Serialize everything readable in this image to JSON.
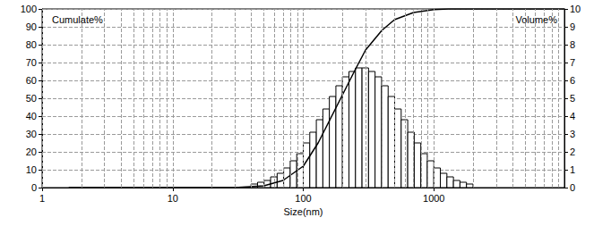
{
  "chart_data": {
    "type": "histogram",
    "xlabel": "Size(nm)",
    "ylabel": "Cumulate%",
    "y2label": "Volume%",
    "log": "x",
    "grid": true,
    "xlim": [
      1,
      10000
    ],
    "xticks": [
      1,
      10,
      100,
      1000
    ],
    "ylim": [
      0,
      100
    ],
    "yticks": [
      0,
      10,
      20,
      30,
      40,
      50,
      60,
      70,
      80,
      90,
      100
    ],
    "y2lim": [
      0,
      10
    ],
    "y2ticks": [
      0,
      1,
      2,
      3,
      4,
      5,
      6,
      7,
      8,
      9,
      10
    ],
    "series": [
      {
        "type": "bar",
        "axis": "y2",
        "color": "#000000",
        "bins": [
          39.81,
          44.67,
          50.12,
          56.23,
          63.1,
          70.79,
          79.43,
          89.13,
          100,
          112.2,
          125.9,
          141.3,
          158.5,
          177.8,
          199.5,
          223.9,
          251.2,
          281.8,
          316.2,
          354.8,
          398.1,
          446.7,
          501.2,
          562.3,
          631.0,
          707.9,
          794.3,
          891.3,
          1000,
          1122,
          1259,
          1413,
          1585,
          1778,
          1995
        ],
        "values": [
          0.2,
          0.3,
          0.4,
          0.6,
          0.8,
          1.1,
          1.5,
          1.9,
          2.5,
          3.1,
          3.8,
          4.4,
          5.1,
          5.7,
          6.2,
          6.5,
          6.7,
          6.7,
          6.5,
          6.2,
          5.7,
          5.1,
          4.4,
          3.8,
          3.1,
          2.5,
          1.9,
          1.5,
          1.1,
          0.8,
          0.6,
          0.4,
          0.3,
          0.2
        ]
      },
      {
        "type": "line",
        "color": "#000000",
        "x": [
          1.6,
          30,
          50,
          70,
          100,
          130,
          160,
          200,
          250,
          300,
          400,
          500,
          700,
          1000,
          1300,
          10000
        ],
        "values": [
          0,
          0,
          1,
          4,
          12,
          25,
          38,
          52,
          66,
          77,
          88,
          94,
          98,
          99.6,
          100,
          100
        ]
      }
    ]
  }
}
